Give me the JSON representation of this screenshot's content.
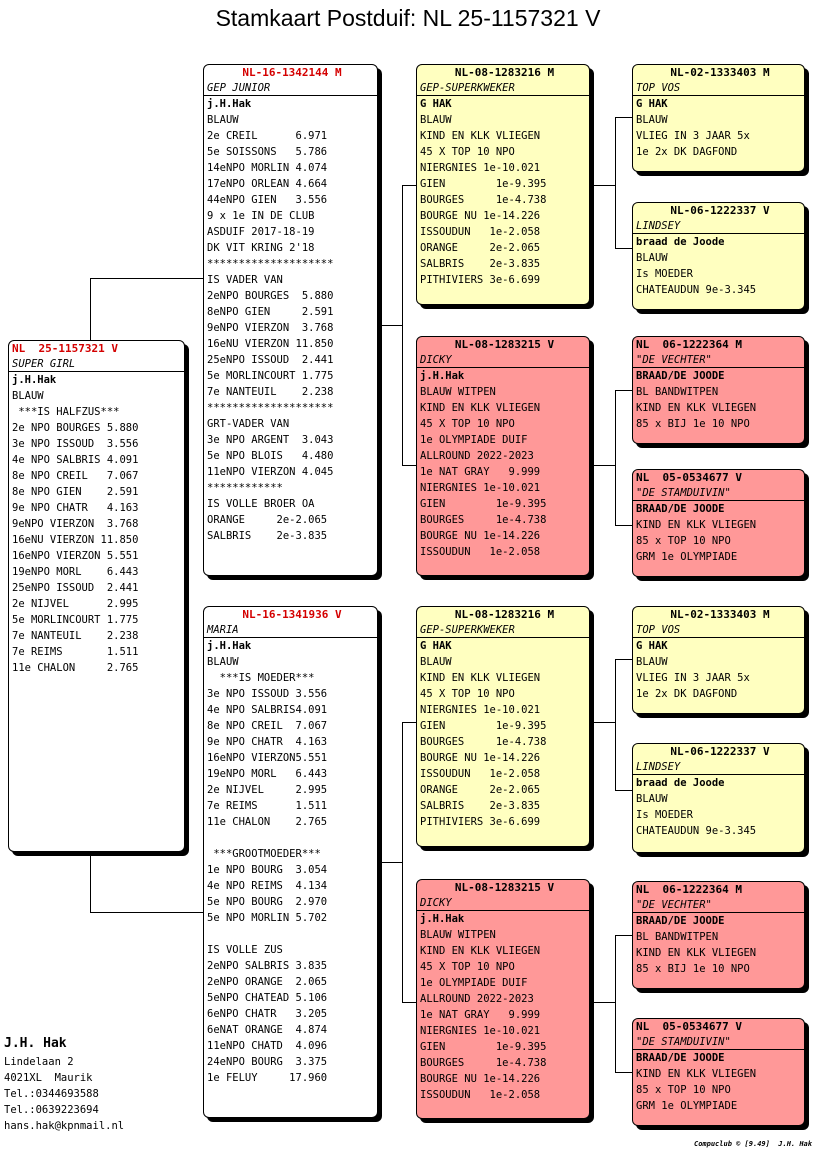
{
  "title": "Stamkaart Postduif: NL  25-1157321 V",
  "cards": {
    "subject": {
      "ring": "NL  25-1157321 V",
      "name": "SUPER GIRL",
      "lines": [
        "j.H.Hak",
        "BLAUW",
        " ***IS HALFZUS***",
        "2e NPO BOURGES 5.880",
        "3e NPO ISSOUD  3.556",
        "4e NPO SALBRIS 4.091",
        "8e NPO CREIL   7.067",
        "8e NPO GIEN    2.591",
        "9e NPO CHATR   4.163",
        "9eNPO VIERZON  3.768",
        "16eNU VIERZON 11.850",
        "16eNPO VIERZON 5.551",
        "19eNPO MORL    6.443",
        "25eNPO ISSOUD  2.441",
        "2e NIJVEL      2.995",
        "5e MORLINCOURT 1.775",
        "7e NANTEUIL    2.238",
        "7e REIMS       1.511",
        "11e CHALON     2.765"
      ]
    },
    "father": {
      "ring": "NL-16-1342144 M",
      "name": "GEP JUNIOR",
      "lines": [
        "j.H.Hak",
        "BLAUW",
        "2e CREIL      6.971",
        "5e SOISSONS   5.786",
        "14eNPO MORLIN 4.074",
        "17eNPO ORLEAN 4.664",
        "44eNPO GIEN   3.556",
        "9 x 1e IN DE CLUB",
        "ASDUIF 2017-18-19",
        "DK VIT KRING 2'18",
        "********************",
        "IS VADER VAN",
        "2eNPO BOURGES  5.880",
        "8eNPO GIEN     2.591",
        "9eNPO VIERZON  3.768",
        "16eNU VIERZON 11.850",
        "25eNPO ISSOUD  2.441",
        "5e MORLINCOURT 1.775",
        "7e NANTEUIL    2.238",
        "********************",
        "GRT-VADER VAN",
        "3e NPO ARGENT  3.043",
        "5e NPO BLOIS   4.480",
        "11eNPO VIERZON 4.045",
        "************",
        "IS VOLLE BROER OA",
        "ORANGE     2e-2.065",
        "SALBRIS    2e-3.835"
      ]
    },
    "mother": {
      "ring": "NL-16-1341936 V",
      "name": "MARIA",
      "lines": [
        "j.H.Hak",
        "BLAUW",
        "  ***IS MOEDER***",
        "3e NPO ISSOUD 3.556",
        "4e NPO SALBRIS4.091",
        "8e NPO CREIL  7.067",
        "9e NPO CHATR  4.163",
        "16eNPO VIERZON5.551",
        "19eNPO MORL   6.443",
        "2e NIJVEL     2.995",
        "7e REIMS      1.511",
        "11e CHALON    2.765",
        "",
        " ***GROOTMOEDER***",
        "1e NPO BOURG  3.054",
        "4e NPO REIMS  4.134",
        "5e NPO BOURG  2.970",
        "5e NPO MORLIN 5.702",
        "",
        "IS VOLLE ZUS",
        "2eNPO SALBRIS 3.835",
        "2eNPO ORANGE  2.065",
        "5eNPO CHATEAD 5.106",
        "6eNPO CHATR   3.205",
        "6eNAT ORANGE  4.874",
        "11eNPO CHATD  4.096",
        "24eNPO BOURG  3.375",
        "1e FELUY     17.960"
      ]
    },
    "ff": {
      "ring": "NL-08-1283216 M",
      "name": "GEP-SUPERKWEKER",
      "lines": [
        "G HAK",
        "BLAUW",
        "KIND EN KLK VLIEGEN",
        "45 X TOP 10 NPO",
        "NIERGNIES 1e-10.021",
        "GIEN        1e-9.395",
        "BOURGES     1e-4.738",
        "BOURGE NU 1e-14.226",
        "ISSOUDUN   1e-2.058",
        "ORANGE     2e-2.065",
        "SALBRIS    2e-3.835",
        "PITHIVIERS 3e-6.699"
      ]
    },
    "fm": {
      "ring": "NL-08-1283215 V",
      "name": "DICKY",
      "lines": [
        "j.H.Hak",
        "BLAUW WITPEN",
        "KIND EN KLK VLIEGEN",
        "45 X TOP 10 NPO",
        "1e OLYMPIADE DUIF",
        "ALLROUND 2022-2023",
        "1e NAT GRAY   9.999",
        "NIERGNIES 1e-10.021",
        "GIEN        1e-9.395",
        "BOURGES     1e-4.738",
        "BOURGE NU 1e-14.226",
        "ISSOUDUN   1e-2.058"
      ]
    },
    "mf": {
      "ring": "NL-08-1283216 M",
      "name": "GEP-SUPERKWEKER",
      "lines": [
        "G HAK",
        "BLAUW",
        "KIND EN KLK VLIEGEN",
        "45 X TOP 10 NPO",
        "NIERGNIES 1e-10.021",
        "GIEN        1e-9.395",
        "BOURGES     1e-4.738",
        "BOURGE NU 1e-14.226",
        "ISSOUDUN   1e-2.058",
        "ORANGE     2e-2.065",
        "SALBRIS    2e-3.835",
        "PITHIVIERS 3e-6.699"
      ]
    },
    "mm": {
      "ring": "NL-08-1283215 V",
      "name": "DICKY",
      "lines": [
        "j.H.Hak",
        "BLAUW WITPEN",
        "KIND EN KLK VLIEGEN",
        "45 X TOP 10 NPO",
        "1e OLYMPIADE DUIF",
        "ALLROUND 2022-2023",
        "1e NAT GRAY   9.999",
        "NIERGNIES 1e-10.021",
        "GIEN        1e-9.395",
        "BOURGES     1e-4.738",
        "BOURGE NU 1e-14.226",
        "ISSOUDUN   1e-2.058"
      ]
    },
    "fff": {
      "ring": "NL-02-1333403 M",
      "name": "TOP VOS",
      "lines": [
        "G HAK",
        "BLAUW",
        "VLIEG IN 3 JAAR 5x",
        "1e 2x DK DAGFOND"
      ]
    },
    "ffm": {
      "ring": "NL-06-1222337 V",
      "name": "LINDSEY",
      "lines": [
        "braad de Joode",
        "BLAUW",
        "Is MOEDER",
        "CHATEAUDUN 9e-3.345"
      ]
    },
    "fmf": {
      "ring": "NL  06-1222364 M",
      "name": "\"DE VECHTER\"",
      "lines": [
        "BRAAD/DE JOODE",
        "BL BANDWITPEN",
        "KIND EN KLK VLIEGEN",
        "85 x BIJ 1e 10 NPO"
      ]
    },
    "fmm": {
      "ring": "NL  05-0534677 V",
      "name": "\"DE STAMDUIVIN\"",
      "lines": [
        "BRAAD/DE JOODE",
        "KIND EN KLK VLIEGEN",
        "85 x TOP 10 NPO",
        "GRM 1e OLYMPIADE"
      ]
    },
    "mff": {
      "ring": "NL-02-1333403 M",
      "name": "TOP VOS",
      "lines": [
        "G HAK",
        "BLAUW",
        "VLIEG IN 3 JAAR 5x",
        "1e 2x DK DAGFOND"
      ]
    },
    "mfm": {
      "ring": "NL-06-1222337 V",
      "name": "LINDSEY",
      "lines": [
        "braad de Joode",
        "BLAUW",
        "Is MOEDER",
        "CHATEAUDUN 9e-3.345"
      ]
    },
    "mmf": {
      "ring": "NL  06-1222364 M",
      "name": "\"DE VECHTER\"",
      "lines": [
        "BRAAD/DE JOODE",
        "BL BANDWITPEN",
        "KIND EN KLK VLIEGEN",
        "85 x BIJ 1e 10 NPO"
      ]
    },
    "mmm": {
      "ring": "NL  05-0534677 V",
      "name": "\"DE STAMDUIVIN\"",
      "lines": [
        "BRAAD/DE JOODE",
        "KIND EN KLK VLIEGEN",
        "85 x TOP 10 NPO",
        "GRM 1e OLYMPIADE"
      ]
    }
  },
  "owner": {
    "name": "J.H. Hak",
    "lines": [
      "Lindelaan 2",
      "4021XL  Maurik",
      "Tel.:0344693588",
      "Tel.:0639223694",
      "hans.hak@kpnmail.nl"
    ]
  },
  "footer": "Compuclub © [9.49]  J.H. Hak",
  "colors": {
    "white": "#ffffff",
    "yellow": "#ffffc0",
    "pink": "#ff9898",
    "red_ring": "#d40000"
  }
}
